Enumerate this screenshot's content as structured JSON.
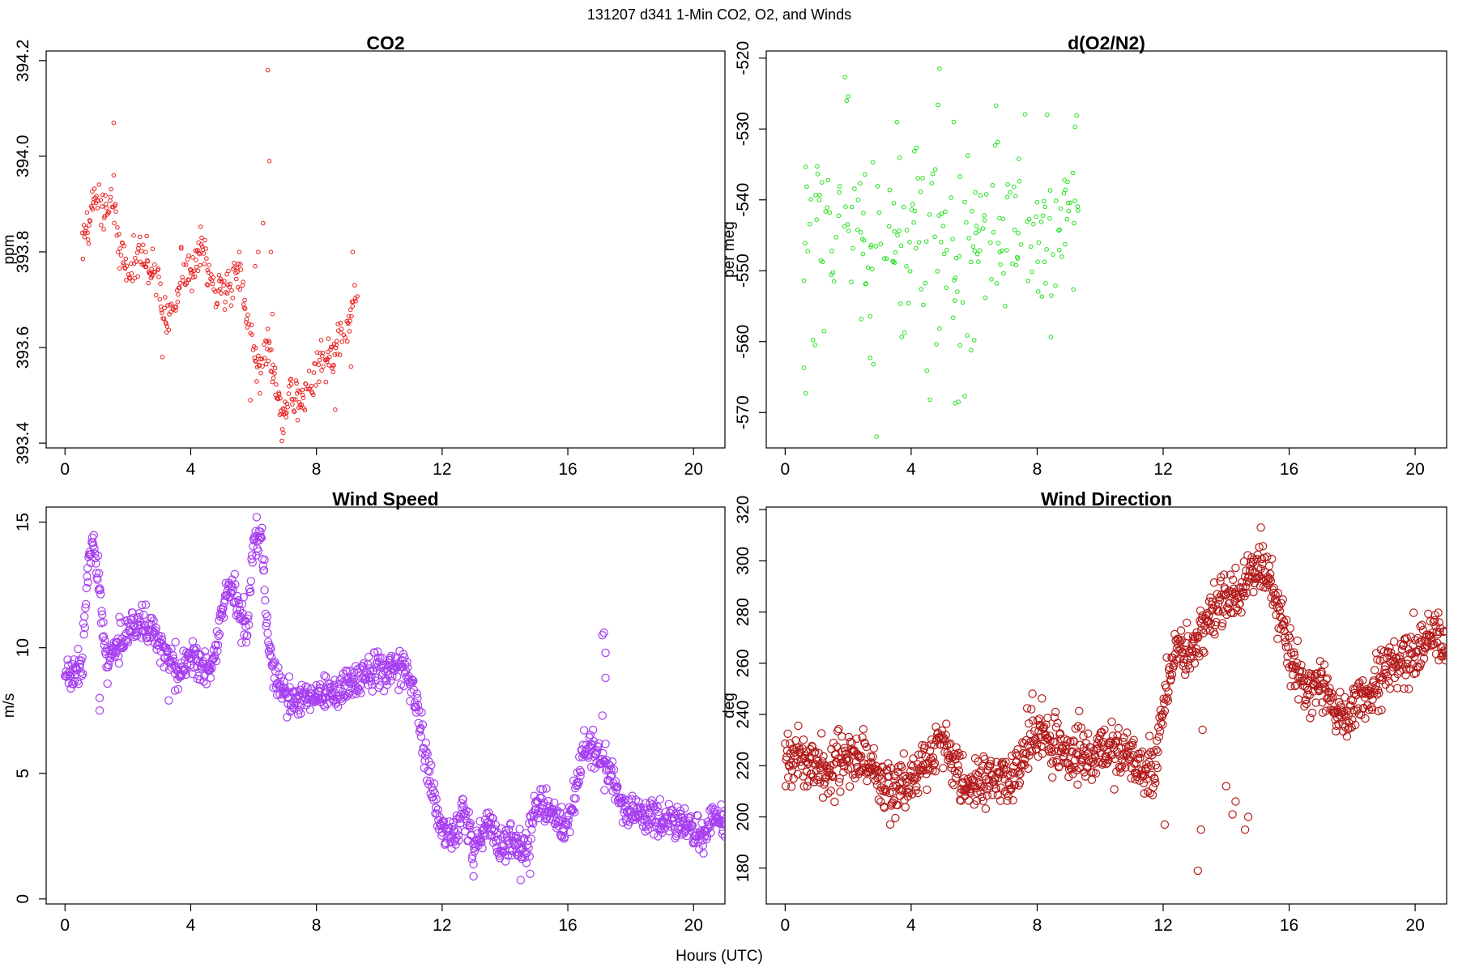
{
  "figure": {
    "suptitle": "131207   d341   1-Min CO2, O2, and Winds",
    "xlabel": "Hours (UTC)"
  },
  "chart_data": [
    {
      "id": "co2",
      "type": "scatter",
      "title": "CO2",
      "xlabel": "",
      "ylabel": "ppm",
      "xlim": [
        -0.6,
        21.0
      ],
      "ylim": [
        393.39,
        394.22
      ],
      "xticks": [
        0,
        4,
        8,
        12,
        16,
        20
      ],
      "yticks": [
        393.4,
        393.6,
        393.8,
        394.0,
        394.2
      ],
      "ytick_labels": [
        "393.4",
        "393.6",
        "393.8",
        "394.0",
        "394.2"
      ],
      "color": "#e8201e",
      "marker_size": "small",
      "anchors": [
        [
          0.55,
          393.82
        ],
        [
          0.7,
          393.84
        ],
        [
          0.85,
          393.88
        ],
        [
          1.0,
          393.92
        ],
        [
          1.1,
          393.89
        ],
        [
          1.55,
          393.9
        ],
        [
          1.7,
          393.8
        ],
        [
          2.0,
          393.77
        ],
        [
          2.4,
          393.79
        ],
        [
          2.8,
          393.76
        ],
        [
          3.1,
          393.68
        ],
        [
          3.3,
          393.65
        ],
        [
          3.5,
          393.7
        ],
        [
          3.8,
          393.75
        ],
        [
          4.1,
          393.77
        ],
        [
          4.35,
          393.82
        ],
        [
          4.55,
          393.75
        ],
        [
          4.8,
          393.7
        ],
        [
          5.5,
          393.76
        ],
        [
          5.75,
          393.67
        ],
        [
          6.0,
          393.6
        ],
        [
          6.2,
          393.55
        ],
        [
          6.45,
          393.6
        ],
        [
          6.7,
          393.52
        ],
        [
          6.9,
          393.44
        ],
        [
          7.2,
          393.5
        ],
        [
          7.5,
          393.49
        ],
        [
          7.8,
          393.52
        ],
        [
          8.1,
          393.56
        ],
        [
          8.4,
          393.57
        ],
        [
          8.7,
          393.62
        ],
        [
          9.0,
          393.64
        ],
        [
          9.2,
          393.7
        ],
        [
          9.3,
          393.68
        ]
      ],
      "noise": 0.022,
      "outliers": [
        [
          1.55,
          394.07
        ],
        [
          1.55,
          393.96
        ],
        [
          1.6,
          393.9
        ],
        [
          3.1,
          393.58
        ],
        [
          3.7,
          393.81
        ],
        [
          5.55,
          393.8
        ],
        [
          5.65,
          393.73
        ],
        [
          5.9,
          393.49
        ],
        [
          6.05,
          393.77
        ],
        [
          6.15,
          393.8
        ],
        [
          6.3,
          393.86
        ],
        [
          6.45,
          394.18
        ],
        [
          6.5,
          393.99
        ],
        [
          6.55,
          393.8
        ],
        [
          6.6,
          393.67
        ],
        [
          8.6,
          393.47
        ],
        [
          9.1,
          393.56
        ],
        [
          9.15,
          393.8
        ]
      ]
    },
    {
      "id": "o2",
      "type": "scatter",
      "title": "d(O2/N2)",
      "xlabel": "",
      "ylabel": "per meg",
      "xlim": [
        -0.6,
        21.0
      ],
      "ylim": [
        -575,
        -519
      ],
      "xticks": [
        0,
        4,
        8,
        12,
        16,
        20
      ],
      "yticks": [
        -570,
        -560,
        -550,
        -540,
        -530,
        -520
      ],
      "ytick_labels": [
        "-570",
        "-560",
        "-550",
        "-540",
        "-530",
        "-520"
      ],
      "color": "#22e01c",
      "marker_size": "small",
      "anchors": [
        [
          0.6,
          -545
        ],
        [
          1.0,
          -546
        ],
        [
          1.5,
          -545
        ],
        [
          2.0,
          -544
        ],
        [
          2.5,
          -545
        ],
        [
          3.0,
          -546
        ],
        [
          3.5,
          -545
        ],
        [
          4.0,
          -544
        ],
        [
          4.5,
          -545
        ],
        [
          4.9,
          -546
        ],
        [
          5.3,
          -547
        ],
        [
          5.7,
          -546
        ],
        [
          6.2,
          -545
        ],
        [
          6.6,
          -544
        ],
        [
          7.0,
          -545
        ],
        [
          7.5,
          -545
        ],
        [
          8.0,
          -544
        ],
        [
          8.5,
          -545
        ],
        [
          9.0,
          -544
        ],
        [
          9.3,
          -545
        ]
      ],
      "noise": 6.5,
      "outliers": [
        [
          0.65,
          -567.3
        ],
        [
          0.6,
          -563.7
        ],
        [
          1.9,
          -522.7
        ],
        [
          1.95,
          -526
        ],
        [
          2.0,
          -525.4
        ],
        [
          2.7,
          -562.3
        ],
        [
          2.8,
          -563.2
        ],
        [
          2.9,
          -573.4
        ],
        [
          4.5,
          -564.1
        ],
        [
          4.6,
          -568.2
        ],
        [
          4.9,
          -521.5
        ],
        [
          4.85,
          -526.6
        ],
        [
          5.4,
          -568.7
        ],
        [
          5.5,
          -568.5
        ],
        [
          5.55,
          -560.5
        ],
        [
          5.7,
          -567.7
        ],
        [
          5.9,
          -561.2
        ],
        [
          5.35,
          -529
        ],
        [
          9.25,
          -528.1
        ],
        [
          9.2,
          -529.7
        ]
      ]
    },
    {
      "id": "ws",
      "type": "scatter",
      "title": "Wind Speed",
      "xlabel": "",
      "ylabel": "m/s",
      "xlim": [
        -0.6,
        21.0
      ],
      "ylim": [
        -0.2,
        15.6
      ],
      "xticks": [
        0,
        4,
        8,
        12,
        16,
        20
      ],
      "yticks": [
        0,
        5,
        10,
        15
      ],
      "ytick_labels": [
        "0",
        "5",
        "10",
        "15"
      ],
      "color": "#a63ef0",
      "marker_size": "large",
      "anchors": [
        [
          0.0,
          9.0
        ],
        [
          0.3,
          8.8
        ],
        [
          0.55,
          9.5
        ],
        [
          0.75,
          13.5
        ],
        [
          0.9,
          14.3
        ],
        [
          1.1,
          12.5
        ],
        [
          1.3,
          9.4
        ],
        [
          1.7,
          10.2
        ],
        [
          2.3,
          11.0
        ],
        [
          2.8,
          10.7
        ],
        [
          3.2,
          9.7
        ],
        [
          3.6,
          9.0
        ],
        [
          4.0,
          9.6
        ],
        [
          4.4,
          9.1
        ],
        [
          4.7,
          9.3
        ],
        [
          4.9,
          10.8
        ],
        [
          5.2,
          12.5
        ],
        [
          5.6,
          11.3
        ],
        [
          5.8,
          10.5
        ],
        [
          6.0,
          14.2
        ],
        [
          6.25,
          14.5
        ],
        [
          6.4,
          11.0
        ],
        [
          6.6,
          9.0
        ],
        [
          6.9,
          8.2
        ],
        [
          7.3,
          7.9
        ],
        [
          7.7,
          8.1
        ],
        [
          8.2,
          8.4
        ],
        [
          8.6,
          8.0
        ],
        [
          9.0,
          8.6
        ],
        [
          9.5,
          9.0
        ],
        [
          10.0,
          9.1
        ],
        [
          10.5,
          9.3
        ],
        [
          10.9,
          9.0
        ],
        [
          11.2,
          7.6
        ],
        [
          11.5,
          5.5
        ],
        [
          11.7,
          4.2
        ],
        [
          11.9,
          3.0
        ],
        [
          12.3,
          2.4
        ],
        [
          12.7,
          3.4
        ],
        [
          13.0,
          2.0
        ],
        [
          13.5,
          3.3
        ],
        [
          13.8,
          2.0
        ],
        [
          14.3,
          2.2
        ],
        [
          14.7,
          2.1
        ],
        [
          15.0,
          3.8
        ],
        [
          15.5,
          3.4
        ],
        [
          15.9,
          2.8
        ],
        [
          16.2,
          4.1
        ],
        [
          16.5,
          5.9
        ],
        [
          16.9,
          5.9
        ],
        [
          17.2,
          5.3
        ],
        [
          17.5,
          4.6
        ],
        [
          17.8,
          3.5
        ],
        [
          18.5,
          3.4
        ],
        [
          19.0,
          3.2
        ],
        [
          19.5,
          3.1
        ],
        [
          20.0,
          2.8
        ],
        [
          20.3,
          2.4
        ],
        [
          20.6,
          3.3
        ],
        [
          21.0,
          3.2
        ]
      ],
      "noise": 0.35,
      "outliers": [
        [
          1.1,
          7.5
        ],
        [
          1.1,
          8.0
        ],
        [
          3.3,
          7.9
        ],
        [
          3.5,
          8.3
        ],
        [
          6.1,
          15.2
        ],
        [
          6.35,
          13.5
        ],
        [
          17.1,
          10.5
        ],
        [
          17.15,
          10.6
        ],
        [
          17.2,
          9.8
        ],
        [
          17.2,
          8.8
        ],
        [
          17.1,
          7.3
        ],
        [
          13.0,
          0.9
        ],
        [
          14.5,
          0.75
        ],
        [
          14.8,
          1.0
        ]
      ]
    },
    {
      "id": "wd",
      "type": "scatter",
      "title": "Wind Direction",
      "xlabel": "",
      "ylabel": "deg",
      "xlim": [
        -0.6,
        21.0
      ],
      "ylim": [
        166,
        321
      ],
      "xticks": [
        0,
        4,
        8,
        12,
        16,
        20
      ],
      "yticks": [
        180,
        200,
        220,
        240,
        260,
        280,
        300,
        320
      ],
      "ytick_labels": [
        "180",
        "200",
        "220",
        "240",
        "260",
        "280",
        "300",
        "320"
      ],
      "color": "#b31a1a",
      "marker_size": "large",
      "anchors": [
        [
          0.0,
          224
        ],
        [
          0.5,
          224
        ],
        [
          0.9,
          220
        ],
        [
          1.3,
          218
        ],
        [
          1.7,
          223
        ],
        [
          2.2,
          224
        ],
        [
          2.6,
          220
        ],
        [
          3.0,
          214
        ],
        [
          3.4,
          209
        ],
        [
          3.8,
          213
        ],
        [
          4.2,
          218
        ],
        [
          4.6,
          224
        ],
        [
          5.0,
          232
        ],
        [
          5.2,
          222
        ],
        [
          5.5,
          215
        ],
        [
          5.8,
          210
        ],
        [
          6.2,
          214
        ],
        [
          6.6,
          215
        ],
        [
          7.0,
          213
        ],
        [
          7.4,
          219
        ],
        [
          7.8,
          230
        ],
        [
          8.2,
          232
        ],
        [
          8.6,
          227
        ],
        [
          9.0,
          223
        ],
        [
          9.5,
          224
        ],
        [
          10.0,
          227
        ],
        [
          10.5,
          225
        ],
        [
          11.0,
          222
        ],
        [
          11.4,
          218
        ],
        [
          11.7,
          215
        ],
        [
          11.9,
          236
        ],
        [
          12.1,
          252
        ],
        [
          12.4,
          266
        ],
        [
          12.8,
          262
        ],
        [
          13.1,
          268
        ],
        [
          13.4,
          278
        ],
        [
          13.8,
          284
        ],
        [
          14.2,
          284
        ],
        [
          14.6,
          294
        ],
        [
          15.0,
          297
        ],
        [
          15.3,
          296
        ],
        [
          15.6,
          286
        ],
        [
          15.8,
          276
        ],
        [
          16.0,
          264
        ],
        [
          16.3,
          254
        ],
        [
          16.7,
          250
        ],
        [
          17.0,
          254
        ],
        [
          17.4,
          242
        ],
        [
          17.8,
          238
        ],
        [
          18.2,
          244
        ],
        [
          18.6,
          250
        ],
        [
          19.0,
          257
        ],
        [
          19.4,
          262
        ],
        [
          19.8,
          262
        ],
        [
          20.2,
          267
        ],
        [
          20.6,
          272
        ],
        [
          21.0,
          266
        ]
      ],
      "noise": 5.0,
      "outliers": [
        [
          13.1,
          179
        ],
        [
          13.2,
          195
        ],
        [
          14.0,
          212
        ],
        [
          14.2,
          201
        ],
        [
          14.3,
          206
        ],
        [
          14.6,
          195
        ],
        [
          14.7,
          200
        ],
        [
          15.1,
          313
        ],
        [
          12.05,
          197
        ],
        [
          13.25,
          234
        ]
      ]
    }
  ]
}
